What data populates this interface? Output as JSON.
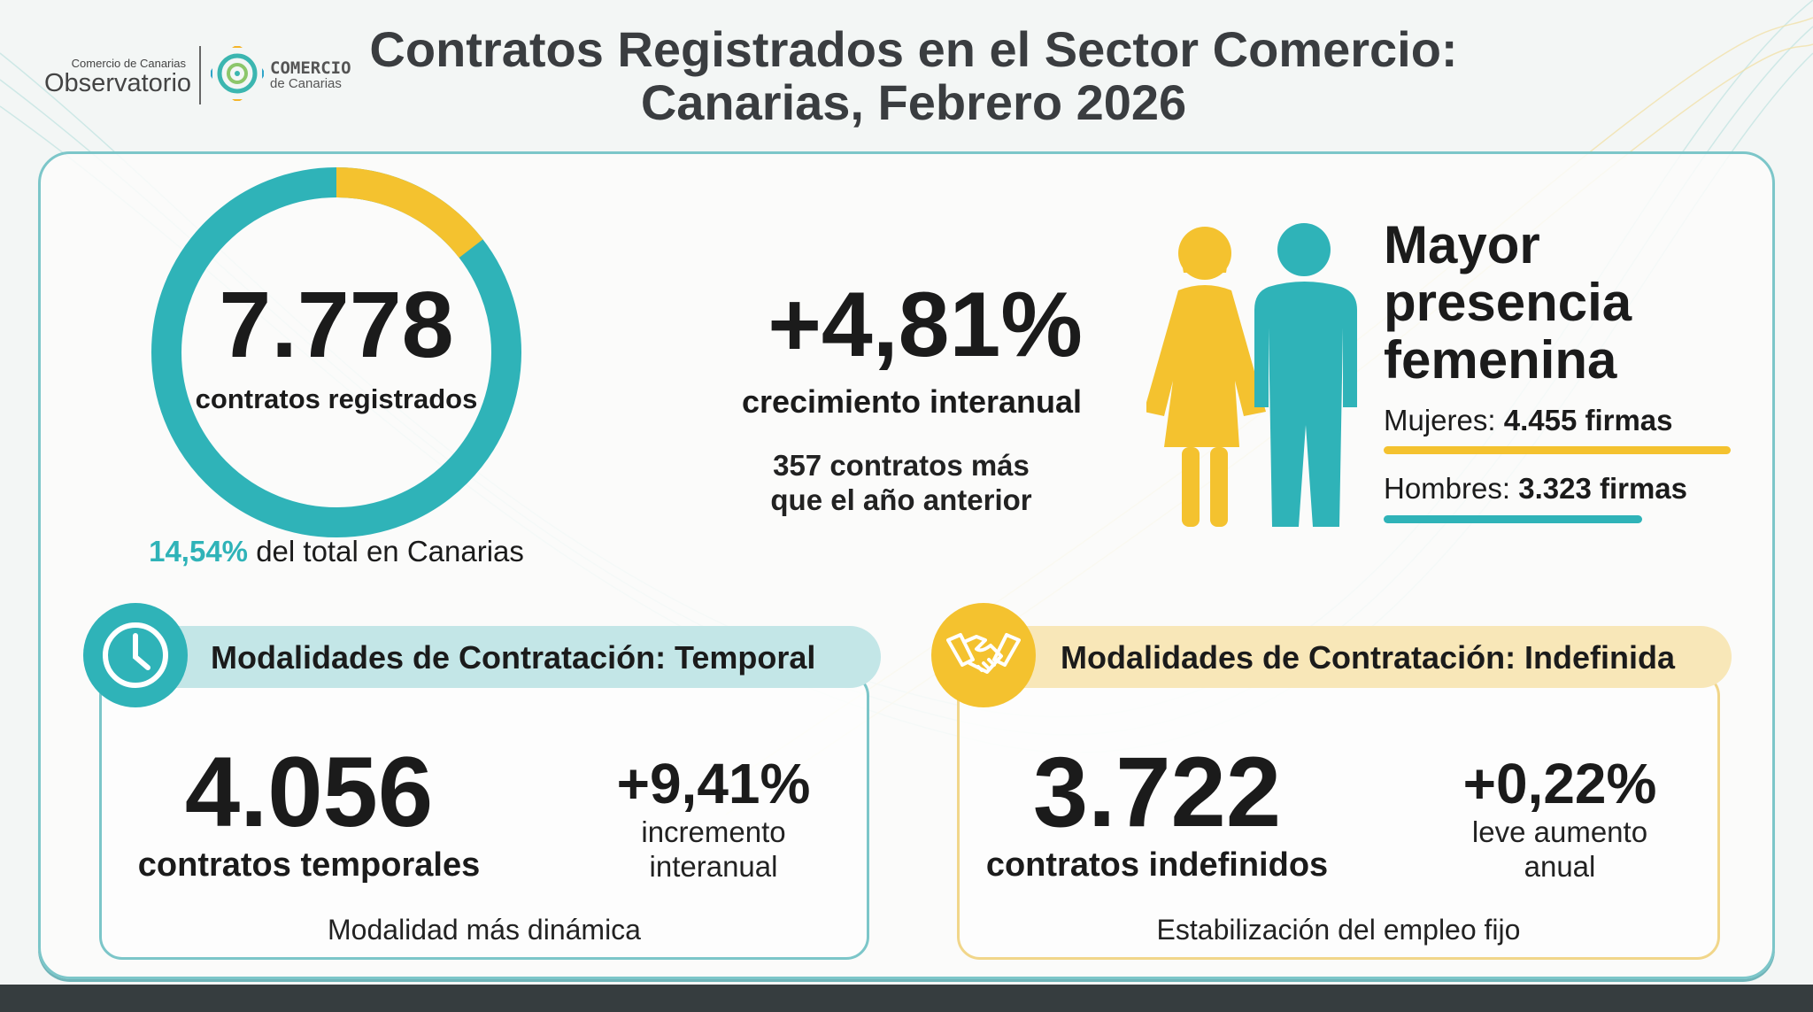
{
  "header": {
    "logo_small": "Comercio de Canarias",
    "logo_big": "Observatorio",
    "brand_top": "COMERCIO",
    "brand_bottom": "de Canarias",
    "title_line1": "Contratos Registrados en el Sector Comercio:",
    "title_line2": "Canarias, Febrero 2026"
  },
  "total": {
    "value": "7.778",
    "label": "contratos registrados",
    "share_value": "14,54%",
    "share_text": " del total en Canarias",
    "ring_share": 0.1454
  },
  "growth": {
    "value": "+4,81%",
    "label": "crecimiento interanual",
    "detail_line1": "357 contratos más",
    "detail_line2": "que el año anterior"
  },
  "gender": {
    "heading_line1": "Mayor",
    "heading_line2": "presencia",
    "heading_line3": "femenina",
    "women_label": "Mujeres: ",
    "women_value": "4.455 firmas",
    "men_label": "Hombres: ",
    "men_value": "3.323 firmas",
    "women_count": 4455,
    "men_count": 3323
  },
  "temporal": {
    "header": "Modalidades de Contratación: Temporal",
    "value": "4.056",
    "label": "contratos temporales",
    "change": "+9,41%",
    "change_line1": "incremento",
    "change_line2": "interanual",
    "note": "Modalidad más dinámica"
  },
  "indefinida": {
    "header": "Modalidades de Contratación: Indefinida",
    "value": "3.722",
    "label": "contratos indefinidos",
    "change": "+0,22%",
    "change_line1": "leve aumento",
    "change_line2": "anual",
    "note": "Estabilización del empleo fijo"
  },
  "colors": {
    "teal": "#2fb3b8",
    "yellow": "#f4c22f",
    "dark": "#363d3f"
  }
}
